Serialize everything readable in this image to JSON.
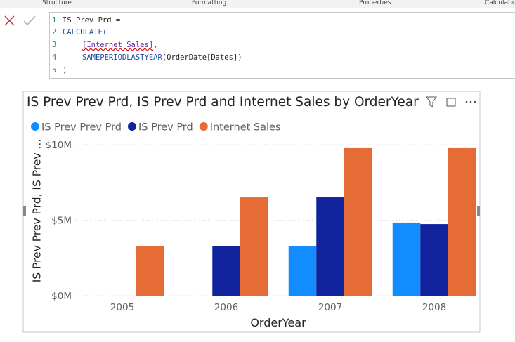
{
  "tabs": [
    "Structure",
    "Formatting",
    "Properties",
    "Calculations"
  ],
  "formula": {
    "line_numbers": [
      "1",
      "2",
      "3",
      "4",
      "5"
    ],
    "lines": [
      [
        "IS Prev Prd ="
      ],
      [
        "CALCULATE("
      ],
      [
        "[Internet Sales]",
        ","
      ],
      [
        "SAMEPERIODLASTYEAR",
        "(OrderDate[Dates])"
      ],
      [
        ")"
      ]
    ]
  },
  "chart_data": {
    "type": "bar",
    "title": "IS Prev Prev Prd, IS Prev Prd and Internet Sales by OrderYear",
    "x_label": "OrderYear",
    "y_label": "IS Prev Prev Prd, IS Prev ...",
    "categories": [
      "2005",
      "2006",
      "2007",
      "2008"
    ],
    "series": [
      {
        "name": "IS Prev Prev Prd",
        "color": "#118DFF",
        "values": [
          null,
          null,
          3260000,
          4840000
        ]
      },
      {
        "name": "IS Prev Prd",
        "color": "#12239E",
        "values": [
          null,
          3260000,
          6510000,
          4740000
        ]
      },
      {
        "name": "Internet Sales",
        "color": "#E66C37",
        "values": [
          3260000,
          6510000,
          9770000,
          9770000
        ]
      }
    ],
    "ylim": [
      0,
      10000000
    ],
    "yticks": [
      {
        "value": 0,
        "label": "$0M"
      },
      {
        "value": 5000000,
        "label": "$5M"
      },
      {
        "value": 10000000,
        "label": "$10M"
      }
    ],
    "grid": true,
    "legend": "top-left"
  }
}
